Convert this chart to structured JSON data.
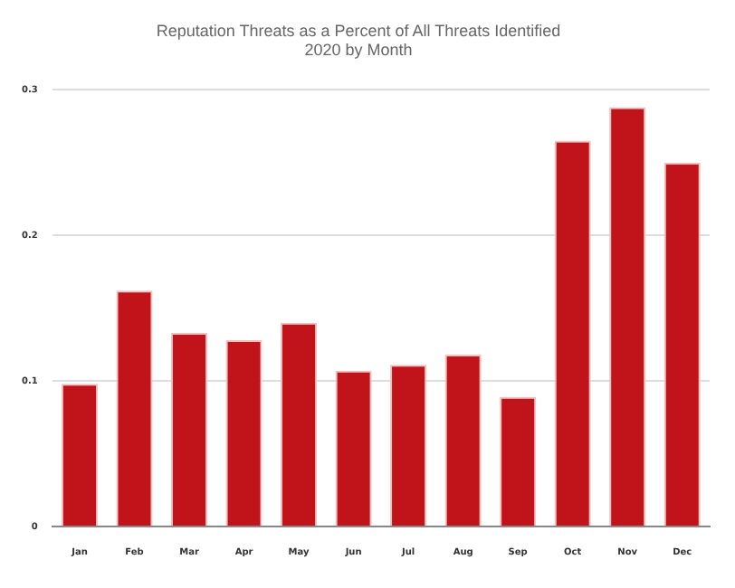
{
  "chart_data": {
    "type": "bar",
    "title": "Reputation Threats as a Percent of All Threats Identified",
    "subtitle": "2020 by Month",
    "categories": [
      "Jan",
      "Feb",
      "Mar",
      "Apr",
      "May",
      "Jun",
      "Jul",
      "Aug",
      "Sep",
      "Oct",
      "Nov",
      "Dec"
    ],
    "values": [
      0.098,
      0.162,
      0.133,
      0.128,
      0.14,
      0.107,
      0.111,
      0.118,
      0.089,
      0.265,
      0.288,
      0.25
    ],
    "color": "#c0141a",
    "ylim": [
      0,
      0.3
    ],
    "yticks": [
      0,
      0.1,
      0.2,
      0.3
    ],
    "grid": "y",
    "legend": false
  }
}
